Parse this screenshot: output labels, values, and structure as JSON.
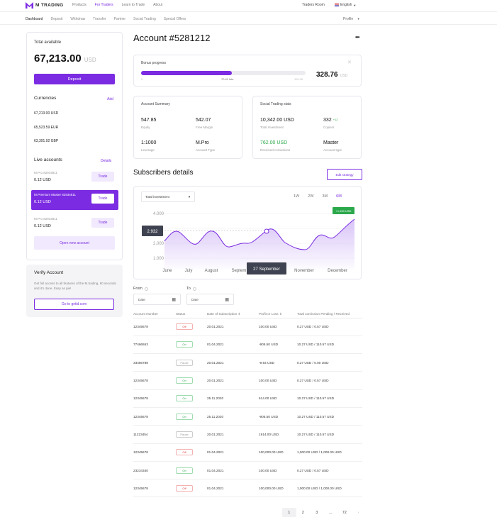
{
  "brand": {
    "name": "M TRADING",
    "accent": "#7b2be2"
  },
  "topnav": [
    "Products",
    "For Traders",
    "Learn to Trade",
    "About"
  ],
  "topnav_active": "For Traders",
  "traders_room": "Traders Room",
  "language": "English",
  "subnav": [
    "Dashboard",
    "Deposit",
    "Withdraw",
    "Transfer",
    "Partner",
    "Social Trading",
    "Special Offers"
  ],
  "profile": "Profile",
  "left": {
    "total_label": "Total available",
    "total_amount": "67,213.00",
    "total_currency": "USD",
    "deposit_label": "Deposit",
    "currencies_title": "Currencies",
    "add_label": "Add",
    "currencies": [
      "67,213.00 USD",
      "65,523.59 EUR",
      "63,391.92 GBP"
    ],
    "live_title": "Live accounts",
    "details_label": "Details",
    "accounts": [
      {
        "name": "M.Pro 82934811",
        "value": "0.12 USD",
        "trade": "Trade"
      },
      {
        "name": "M.Premium Master 82934811",
        "value": "0.12 USD",
        "trade": "Trade"
      },
      {
        "name": "M.Pro 82934811",
        "value": "0.12 USD",
        "trade": "Trade"
      }
    ],
    "open_new": "Open new account",
    "verify_title": "Verify Account",
    "verify_text": "Get full access to all features of the M.trading, 60 seconds and it's done. Easy as pie!",
    "verify_button": "Go to getid.com"
  },
  "main": {
    "account_title": "Account #5281212",
    "more_icon": "more-icon",
    "bonus": {
      "label": "Bonus progress",
      "progress": 0.55,
      "min": "0",
      "mid": "70.41 lots",
      "max": "115.45",
      "amount": "328.76",
      "currency": "USD"
    },
    "summary": {
      "title": "Account Summary",
      "items": [
        {
          "value": "547.85",
          "label": "Equity"
        },
        {
          "value": "542.07",
          "label": "Free Margin"
        },
        {
          "value": "1:1000",
          "label": "Leverage"
        },
        {
          "value": "M.Pro",
          "label": "Account Type"
        }
      ]
    },
    "social": {
      "title": "Social Trading stats",
      "investment": {
        "value": "10,342.00 USD",
        "label": "Total Investment"
      },
      "copiers": {
        "value": "332",
        "delta": "+12",
        "label": "Copiers"
      },
      "commission": {
        "value": "762.00 USD",
        "label": "Received comissions"
      },
      "type": {
        "value": "Master",
        "label": "Account type"
      }
    },
    "subscribers_title": "Subscribers details",
    "edit_strategy": "Edit strategy",
    "chart": {
      "select_label": "Total investment",
      "ranges": [
        "1W",
        "2W",
        "3M",
        "6M"
      ],
      "active_range": "6M",
      "yticks": [
        "4.000",
        "3.000",
        "2.000",
        "1.000"
      ],
      "xticks": [
        "June",
        "July",
        "August",
        "Septem",
        "November",
        "December"
      ],
      "marker_value": "2.932",
      "marker_date": "27 September",
      "end_badge": "+1,200 USD"
    },
    "filters": {
      "from_label": "From",
      "to_label": "To",
      "date_placeholder": "Date"
    },
    "table": {
      "headers": [
        "Account Number",
        "Status",
        "Date of Subscription",
        "Profit or Loss",
        "Total comission Pending / Received"
      ],
      "rows": [
        [
          "12345678",
          "Off",
          "20.01.2021",
          "100.00 USD",
          "0.27 USD / 0.57 USD"
        ],
        [
          "77466553",
          "On",
          "01.04.2021",
          "-905.50 USD",
          "10.27 USD / 110.57 USD"
        ],
        [
          "33456788",
          "Pause",
          "20.01.2021",
          "-9.54 USD",
          "0.27 USD / 0.00 USD"
        ],
        [
          "12345678",
          "On",
          "20.01.2021",
          "100.00 USD",
          "0.27 USD / 0.57 USD"
        ],
        [
          "12345678",
          "On",
          "25.11.2020",
          "614.00 USD",
          "10.27 USD / 110.57 USD"
        ],
        [
          "12345678",
          "On",
          "25.11.2020",
          "-905.50 USD",
          "10.27 USD / 110.57 USD"
        ],
        [
          "11223454",
          "Pause",
          "20.01.2021",
          "1914.00 USD",
          "10.27 USD / 110.57 USD"
        ],
        [
          "12345678",
          "Off",
          "01.04.2021",
          "100,000.00 USD",
          "1,000.00 USD / 1,000.00 USD"
        ],
        [
          "23234340",
          "On",
          "01.04.2021",
          "100.00 USD",
          "0.27 USD / 0.57 USD"
        ],
        [
          "12345678",
          "Off",
          "01.04.2021",
          "100,000.00 USD",
          "1,000.00 USD / 1,000.00 USD"
        ]
      ]
    },
    "pagination": [
      "1",
      "2",
      "3",
      "...",
      "72"
    ]
  }
}
